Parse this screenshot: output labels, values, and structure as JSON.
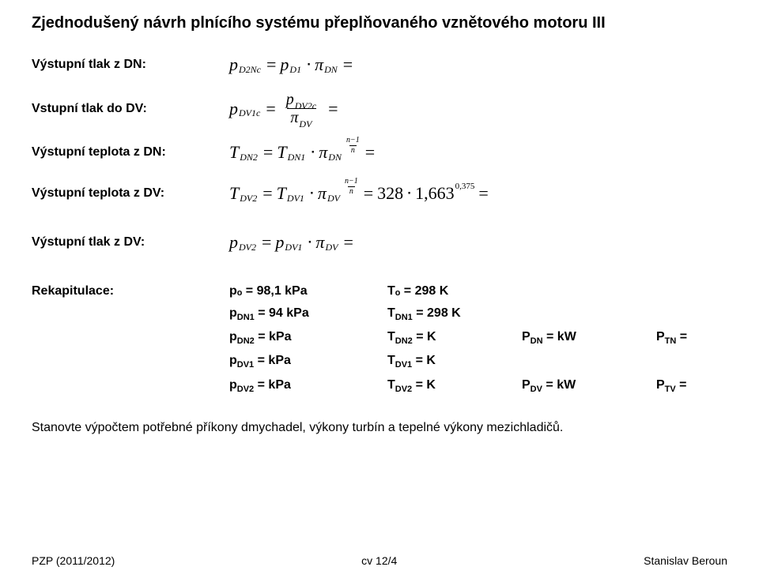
{
  "title": "Zjednodušený návrh plnícího systému přeplňovaného vznětového motoru III",
  "rows": {
    "r1": {
      "label": "Výstupní tlak z DN:"
    },
    "r2": {
      "label": "Vstupní tlak do DV:"
    },
    "r3": {
      "label": "Výstupní teplota z DN:"
    },
    "r4": {
      "label": "Výstupní teplota z DV:"
    },
    "r5": {
      "label": "Výstupní tlak z DV:"
    }
  },
  "eq": {
    "p": "p",
    "T": "T",
    "pi": "π",
    "eq": "=",
    "cdot": "⋅",
    "D2Nc": "D2Nc",
    "D1": "D1",
    "DN": "DN",
    "DV1c": "DV1c",
    "DV2c": "DV2c",
    "DV": "DV",
    "DN2": "DN2",
    "DN1": "DN1",
    "DV2": "DV2",
    "DV1": "DV1",
    "exp_num": "n−1",
    "exp_den": "n",
    "val_328": "328",
    "val_1663": "1,663",
    "exp_0375": "0,375"
  },
  "recap": {
    "label": "Rekapitulace:",
    "rows": [
      {
        "c1": "pₒ =  98,1 kPa",
        "c2": "Tₒ =   298 K",
        "c3": "",
        "c4": ""
      },
      {
        "c1_sym": "p",
        "c1_sub": "DN1",
        "c1_rest": " =  94 kPa",
        "c2_sym": "T",
        "c2_sub": "DN1",
        "c2_rest": " = 298 K",
        "c3": "",
        "c4": ""
      },
      {
        "c1_sym": "p",
        "c1_sub": "DN2",
        "c1_rest": " =       kPa",
        "c2_sym": "T",
        "c2_sub": "DN2",
        "c2_rest": " =         K",
        "c3_sym": "P",
        "c3_sub": "DN",
        "c3_rest": " =        kW",
        "c4_sym": "P",
        "c4_sub": "TN",
        "c4_rest": " ="
      },
      {
        "c1_sym": "p",
        "c1_sub": "DV1",
        "c1_rest": " =       kPa",
        "c2_sym": "T",
        "c2_sub": "DV1",
        "c2_rest": " =         K",
        "c3": "",
        "c4": ""
      },
      {
        "c1_sym": "p",
        "c1_sub": "DV2",
        "c1_rest": " =       kPa",
        "c2_sym": "T",
        "c2_sub": "DV2",
        "c2_rest": " =         K",
        "c3_sym": "P",
        "c3_sub": "DV",
        "c3_rest": " =        kW",
        "c4_sym": "P",
        "c4_sub": "TV",
        "c4_rest": " ="
      }
    ]
  },
  "note": "Stanovte výpočtem potřebné příkony dmychadel, výkony turbín a tepelné výkony mezichladičů.",
  "footer": {
    "left": "PZP (2011/2012)",
    "center": "cv 12/4",
    "right": "Stanislav Beroun"
  }
}
